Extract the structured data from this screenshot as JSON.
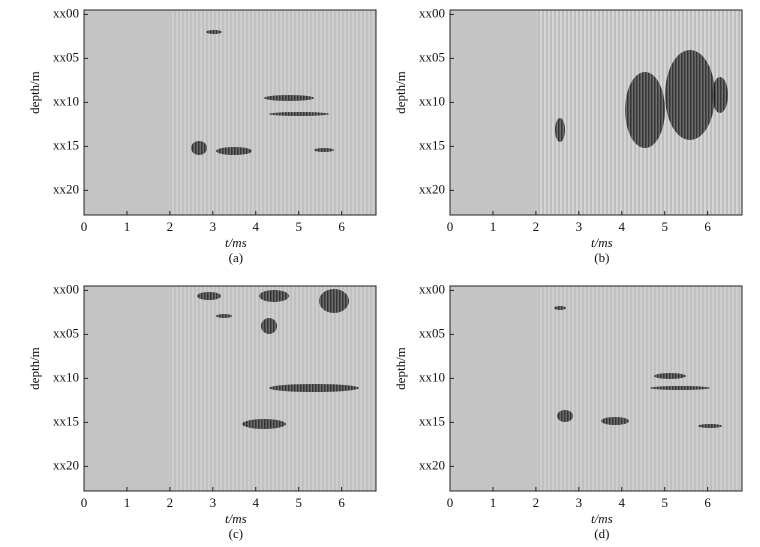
{
  "chart_data": [
    {
      "type": "image",
      "caption": "(a)",
      "xlabel": "t/ms",
      "ylabel": "depth/m",
      "xlim": [
        0,
        6.8
      ],
      "ylim": [
        22.8,
        -0.5
      ],
      "xticks": [
        0,
        1,
        2,
        3,
        4,
        5,
        6
      ],
      "yticks": [
        {
          "value": 0,
          "label": "xx00"
        },
        {
          "value": 5,
          "label": "xx05"
        },
        {
          "value": 10,
          "label": "xx10"
        },
        {
          "value": 15,
          "label": "xx15"
        },
        {
          "value": 20,
          "label": "xx20"
        }
      ]
    },
    {
      "type": "image",
      "caption": "(b)",
      "xlabel": "t/ms",
      "ylabel": "depth/m",
      "xlim": [
        0,
        6.8
      ],
      "ylim": [
        22.8,
        -0.5
      ],
      "xticks": [
        0,
        1,
        2,
        3,
        4,
        5,
        6
      ],
      "yticks": [
        {
          "value": 0,
          "label": "xx00"
        },
        {
          "value": 5,
          "label": "xx05"
        },
        {
          "value": 10,
          "label": "xx10"
        },
        {
          "value": 15,
          "label": "xx15"
        },
        {
          "value": 20,
          "label": "xx20"
        }
      ]
    },
    {
      "type": "image",
      "caption": "(c)",
      "xlabel": "t/ms",
      "ylabel": "depth/m",
      "xlim": [
        0,
        6.8
      ],
      "ylim": [
        22.8,
        -0.5
      ],
      "xticks": [
        0,
        1,
        2,
        3,
        4,
        5,
        6
      ],
      "yticks": [
        {
          "value": 0,
          "label": "xx00"
        },
        {
          "value": 5,
          "label": "xx05"
        },
        {
          "value": 10,
          "label": "xx10"
        },
        {
          "value": 15,
          "label": "xx15"
        },
        {
          "value": 20,
          "label": "xx20"
        }
      ]
    },
    {
      "type": "image",
      "caption": "(d)",
      "xlabel": "t/ms",
      "ylabel": "depth/m",
      "xlim": [
        0,
        6.8
      ],
      "ylim": [
        22.8,
        -0.5
      ],
      "xticks": [
        0,
        1,
        2,
        3,
        4,
        5,
        6
      ],
      "yticks": [
        {
          "value": 0,
          "label": "xx00"
        },
        {
          "value": 5,
          "label": "xx05"
        },
        {
          "value": 10,
          "label": "xx10"
        },
        {
          "value": 15,
          "label": "xx15"
        },
        {
          "value": 20,
          "label": "xx20"
        }
      ]
    }
  ]
}
